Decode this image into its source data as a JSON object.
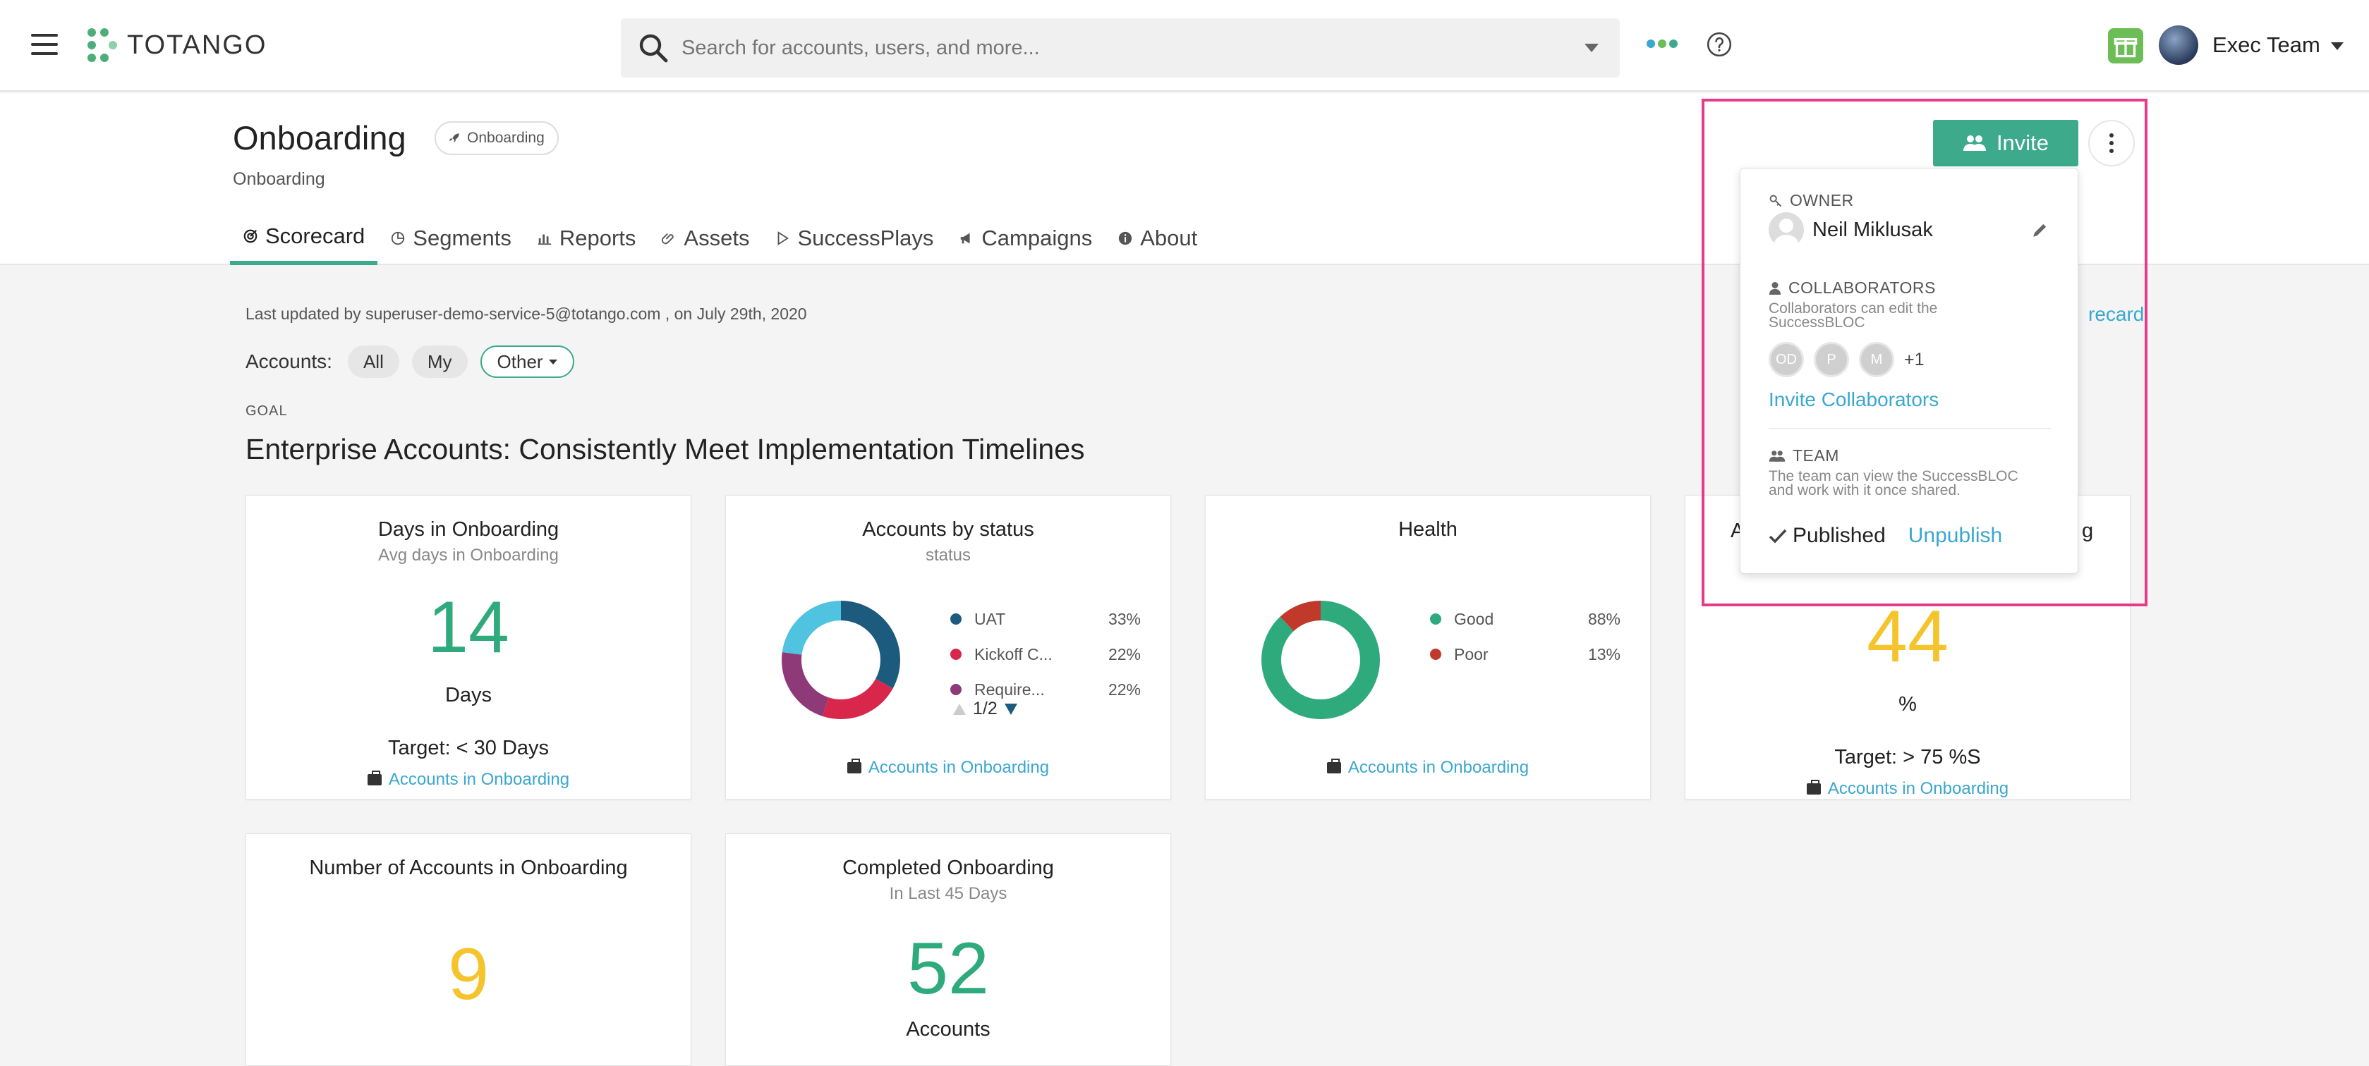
{
  "app": {
    "logo_text": "TOTANGO"
  },
  "search": {
    "placeholder": "Search for accounts, users, and more..."
  },
  "user": {
    "name": "Exec Team"
  },
  "page": {
    "title": "Onboarding",
    "badge": "Onboarding",
    "subtitle": "Onboarding"
  },
  "tabs": [
    {
      "label": "Scorecard",
      "icon": "target-icon"
    },
    {
      "label": "Segments",
      "icon": "pie-icon"
    },
    {
      "label": "Reports",
      "icon": "bar-chart-icon"
    },
    {
      "label": "Assets",
      "icon": "paperclip-icon"
    },
    {
      "label": "SuccessPlays",
      "icon": "play-icon"
    },
    {
      "label": "Campaigns",
      "icon": "megaphone-icon"
    },
    {
      "label": "About",
      "icon": "info-icon"
    }
  ],
  "scorecard": {
    "updated_text": "Last updated by superuser-demo-service-5@totango.com , on July 29th, 2020",
    "link_fragment": "recard",
    "filters": {
      "label": "Accounts:",
      "options": [
        "All",
        "My",
        "Other"
      ]
    },
    "goal_label": "GOAL",
    "goal_text": "Enterprise Accounts: Consistently Meet Implementation Timelines"
  },
  "cards": [
    {
      "title": "Days in Onboarding",
      "subtitle": "Avg days in Onboarding",
      "value": "14",
      "unit": "Days",
      "target": "Target: < 30 Days",
      "link": "Accounts in Onboarding",
      "color": "#2eaa7d"
    },
    {
      "title": "Accounts by status",
      "subtitle": "status",
      "link": "Accounts in Onboarding",
      "legend": [
        {
          "name": "UAT",
          "pct": "33%",
          "color": "#1c5a7e"
        },
        {
          "name": "Kickoff C...",
          "pct": "22%",
          "color": "#d9274b"
        },
        {
          "name": "Require...",
          "pct": "22%",
          "color": "#8e3a78"
        }
      ],
      "pager": "1/2"
    },
    {
      "title": "Health",
      "link": "Accounts in Onboarding",
      "legend": [
        {
          "name": "Good",
          "pct": "88%",
          "color": "#2eaa7d"
        },
        {
          "name": "Poor",
          "pct": "13%",
          "color": "#c0392b"
        }
      ]
    },
    {
      "title_left": "A",
      "title_right": "g",
      "value": "44",
      "unit": "%",
      "target": "Target: > 75 %S",
      "link": "Accounts in Onboarding",
      "color": "#f5c42c"
    },
    {
      "title": "Number of Accounts in Onboarding",
      "value": "9",
      "color": "#f5c42c"
    },
    {
      "title": "Completed Onboarding",
      "subtitle": "In Last 45 Days",
      "value": "52",
      "unit": "Accounts",
      "color": "#2eaa7d"
    }
  ],
  "popup": {
    "invite_label": "Invite",
    "owner_label": "OWNER",
    "owner_name": "Neil Miklusak",
    "collaborators_label": "COLLABORATORS",
    "collaborators_desc": "Collaborators can edit the SuccessBLOC",
    "collaborator_avatars": [
      "OD",
      "P",
      "M"
    ],
    "collaborators_more": "+1",
    "invite_collaborators": "Invite Collaborators",
    "team_label": "TEAM",
    "team_desc": "The team can view the SuccessBLOC and work with it once shared.",
    "published_label": "Published",
    "unpublish_label": "Unpublish"
  },
  "colors": {
    "accent": "#3daa8c",
    "link": "#3aa7cf",
    "highlight_frame": "#e73a8a"
  }
}
